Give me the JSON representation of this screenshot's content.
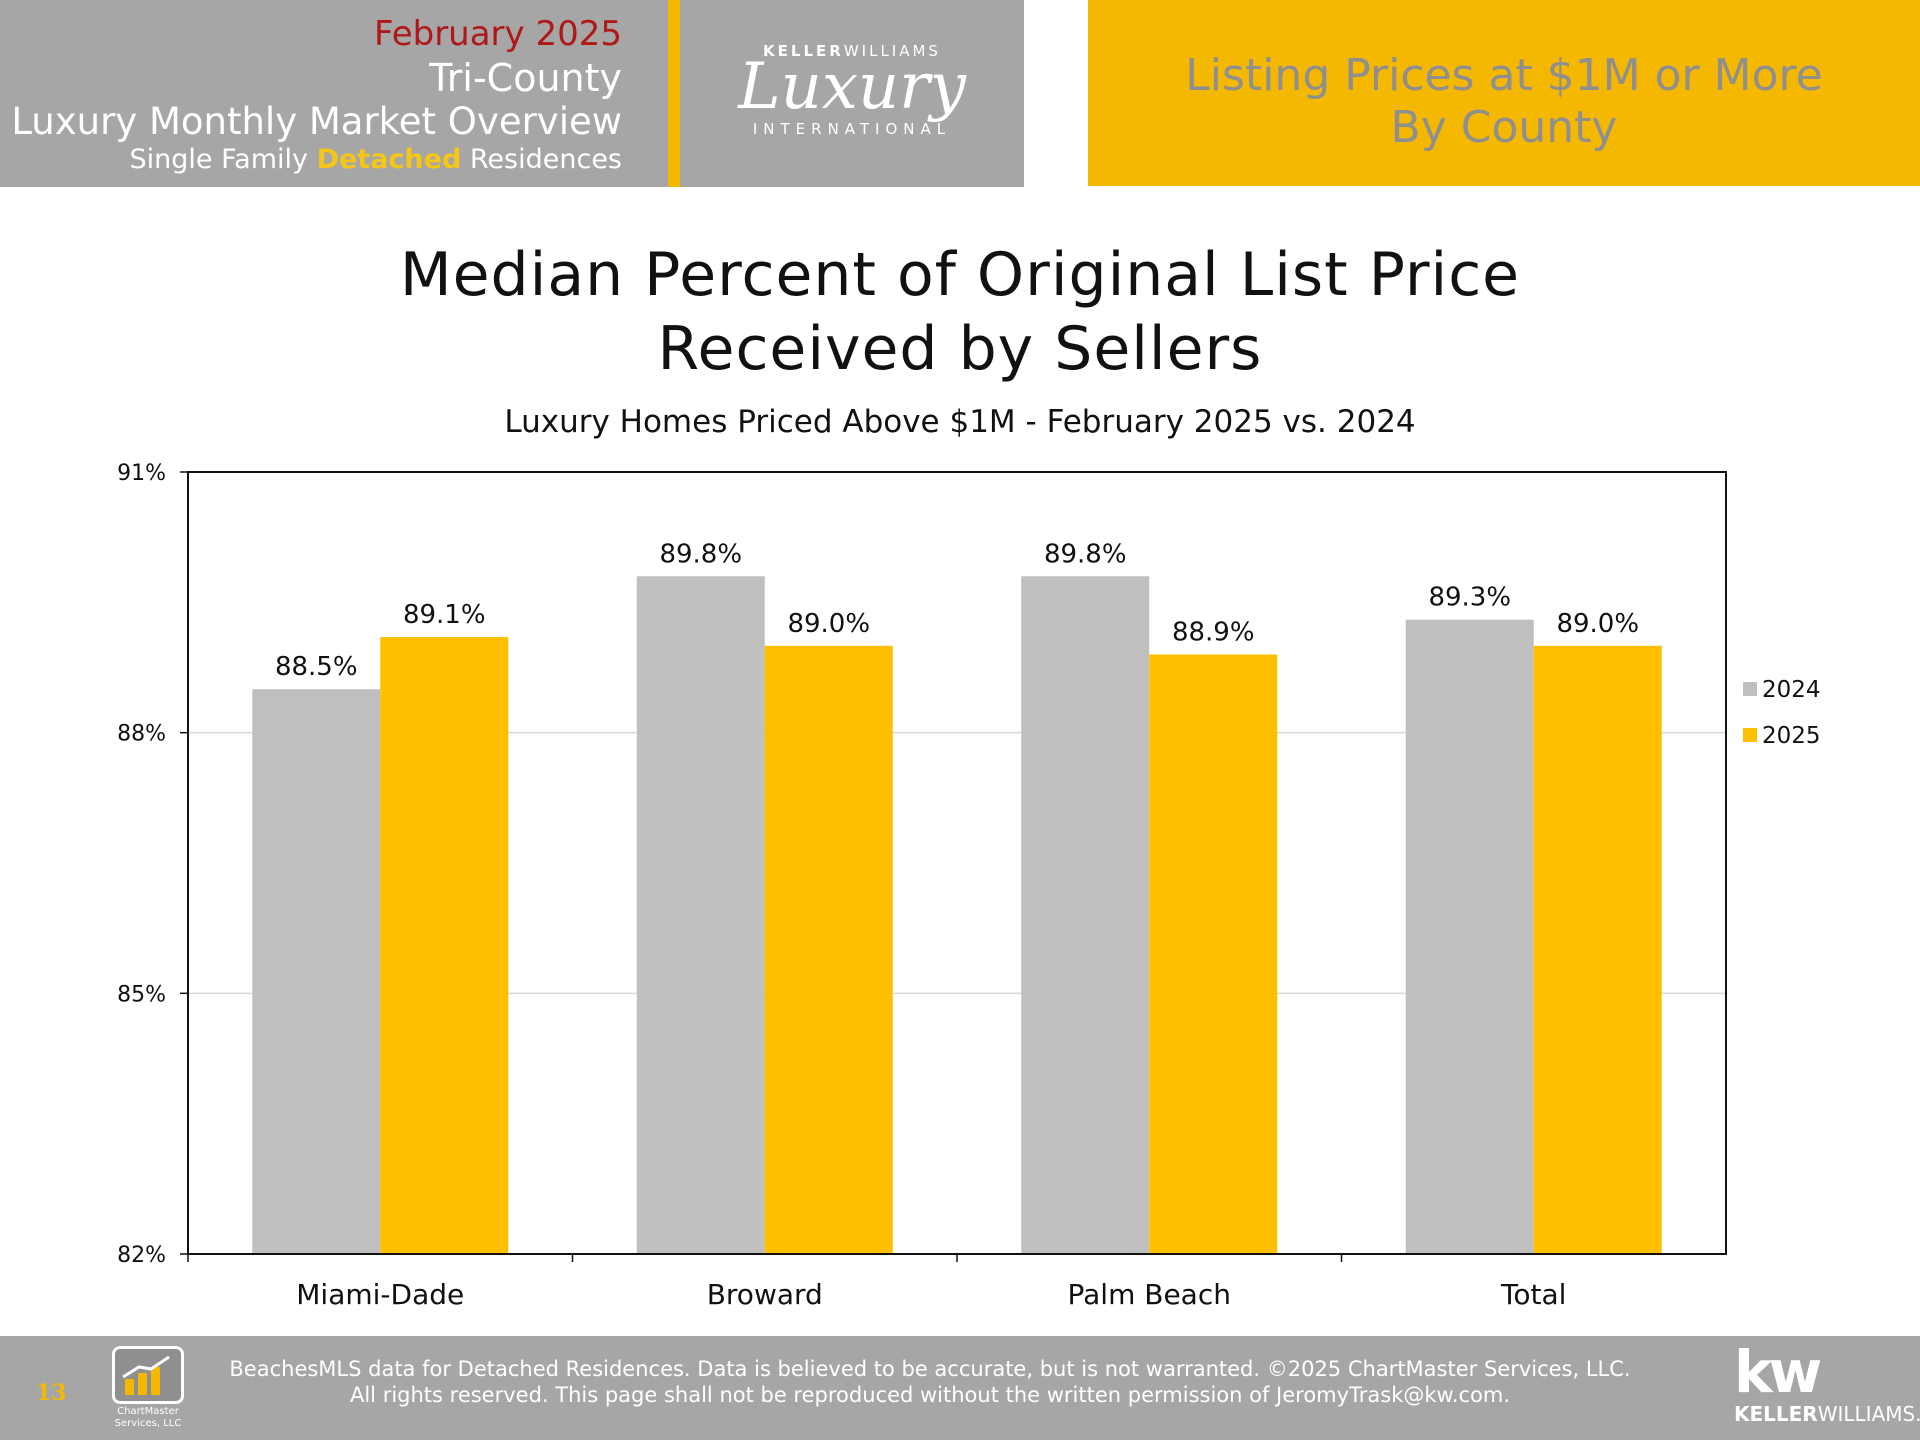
{
  "header": {
    "month": "February 2025",
    "region": "Tri-County",
    "overview": "Luxury Monthly Market Overview",
    "subtitle_pre": "Single Family ",
    "subtitle_highlight": "Detached",
    "subtitle_post": " Residences",
    "logo_top_bold": "KELLER",
    "logo_top_rest": "WILLIAMS",
    "logo_script": "Luxury",
    "logo_intl": "INTERNATIONAL",
    "right_line1": "Listing Prices at $1M or More",
    "right_line2": "By County"
  },
  "chart_data": {
    "type": "bar",
    "title_line1": "Median Percent of Original List Price",
    "title_line2": "Received by Sellers",
    "subtitle": "Luxury Homes Priced Above $1M - February 2025 vs. 2024",
    "categories": [
      "Miami-Dade",
      "Broward",
      "Palm Beach",
      "Total"
    ],
    "series": [
      {
        "name": "2024",
        "values": [
          88.5,
          89.8,
          89.8,
          89.3
        ],
        "labels": [
          "88.5%",
          "89.8%",
          "89.8%",
          "89.3%"
        ],
        "color": "#bfbfbf"
      },
      {
        "name": "2025",
        "values": [
          89.1,
          89.0,
          88.9,
          89.0
        ],
        "labels": [
          "89.1%",
          "89.0%",
          "88.9%",
          "89.0%"
        ],
        "color": "#fdbf00"
      }
    ],
    "ylim": [
      82,
      91
    ],
    "yticks": [
      82,
      85,
      88,
      91
    ],
    "ytick_labels": [
      "82%",
      "85%",
      "88%",
      "91%"
    ],
    "grid": true,
    "legend": "right"
  },
  "footer": {
    "page_number": "13",
    "line1": "BeachesMLS data for Detached Residences.  Data is believed to be accurate, but is not warranted.   ©2025  ChartMaster Services, LLC.",
    "line2": "All rights reserved. This page shall not be reproduced without the written permission of JeromyTrask@kw.com.",
    "cm_label_line1": "ChartMaster",
    "cm_label_line2": "Services, LLC",
    "kw_mark": "kw",
    "kw_name_bold": "KELLER",
    "kw_name_rest": "WILLIAMS."
  }
}
